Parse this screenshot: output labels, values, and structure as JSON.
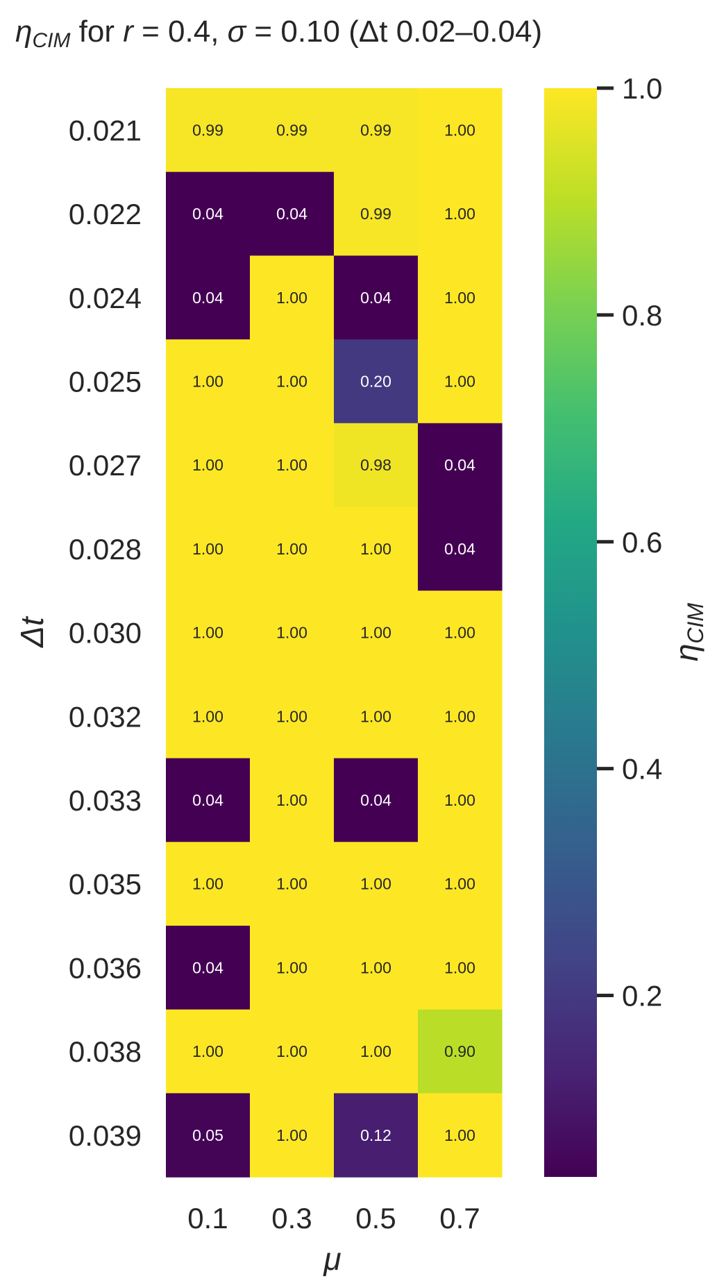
{
  "chart_data": {
    "type": "heatmap",
    "title": "η_CIM for r = 0.4, σ = 0.10 (Δt 0.02–0.04)",
    "title_parts": {
      "eta": "η",
      "eta_sub": "CIM",
      "for_text": " for ",
      "r": "r",
      "r_eq": " = 0.4,  ",
      "sigma": "σ",
      "sigma_eq": " = 0.10 (Δt 0.02–0.04)"
    },
    "xlabel": "μ",
    "ylabel": "Δt",
    "x_categories": [
      "0.1",
      "0.3",
      "0.5",
      "0.7"
    ],
    "y_categories": [
      "0.021",
      "0.022",
      "0.024",
      "0.025",
      "0.027",
      "0.028",
      "0.030",
      "0.032",
      "0.033",
      "0.035",
      "0.036",
      "0.038",
      "0.039"
    ],
    "values": [
      [
        0.99,
        0.99,
        0.99,
        1.0
      ],
      [
        0.04,
        0.04,
        0.99,
        1.0
      ],
      [
        0.04,
        1.0,
        0.04,
        1.0
      ],
      [
        1.0,
        1.0,
        0.2,
        1.0
      ],
      [
        1.0,
        1.0,
        0.98,
        0.04
      ],
      [
        1.0,
        1.0,
        1.0,
        0.04
      ],
      [
        1.0,
        1.0,
        1.0,
        1.0
      ],
      [
        1.0,
        1.0,
        1.0,
        1.0
      ],
      [
        0.04,
        1.0,
        0.04,
        1.0
      ],
      [
        1.0,
        1.0,
        1.0,
        1.0
      ],
      [
        0.04,
        1.0,
        1.0,
        1.0
      ],
      [
        1.0,
        1.0,
        1.0,
        0.9
      ],
      [
        0.05,
        1.0,
        0.12,
        1.0
      ]
    ],
    "value_format_decimals": 2,
    "colormap": "viridis",
    "vmin": 0.04,
    "vmax": 1.0,
    "colorbar": {
      "label": "η",
      "label_sub": "CIM",
      "ticks": [
        0.2,
        0.4,
        0.6,
        0.8,
        1.0
      ],
      "tick_labels": [
        "0.2",
        "0.4",
        "0.6",
        "0.8",
        "1.0"
      ]
    },
    "grid": false,
    "legend": "colorbar-right"
  }
}
